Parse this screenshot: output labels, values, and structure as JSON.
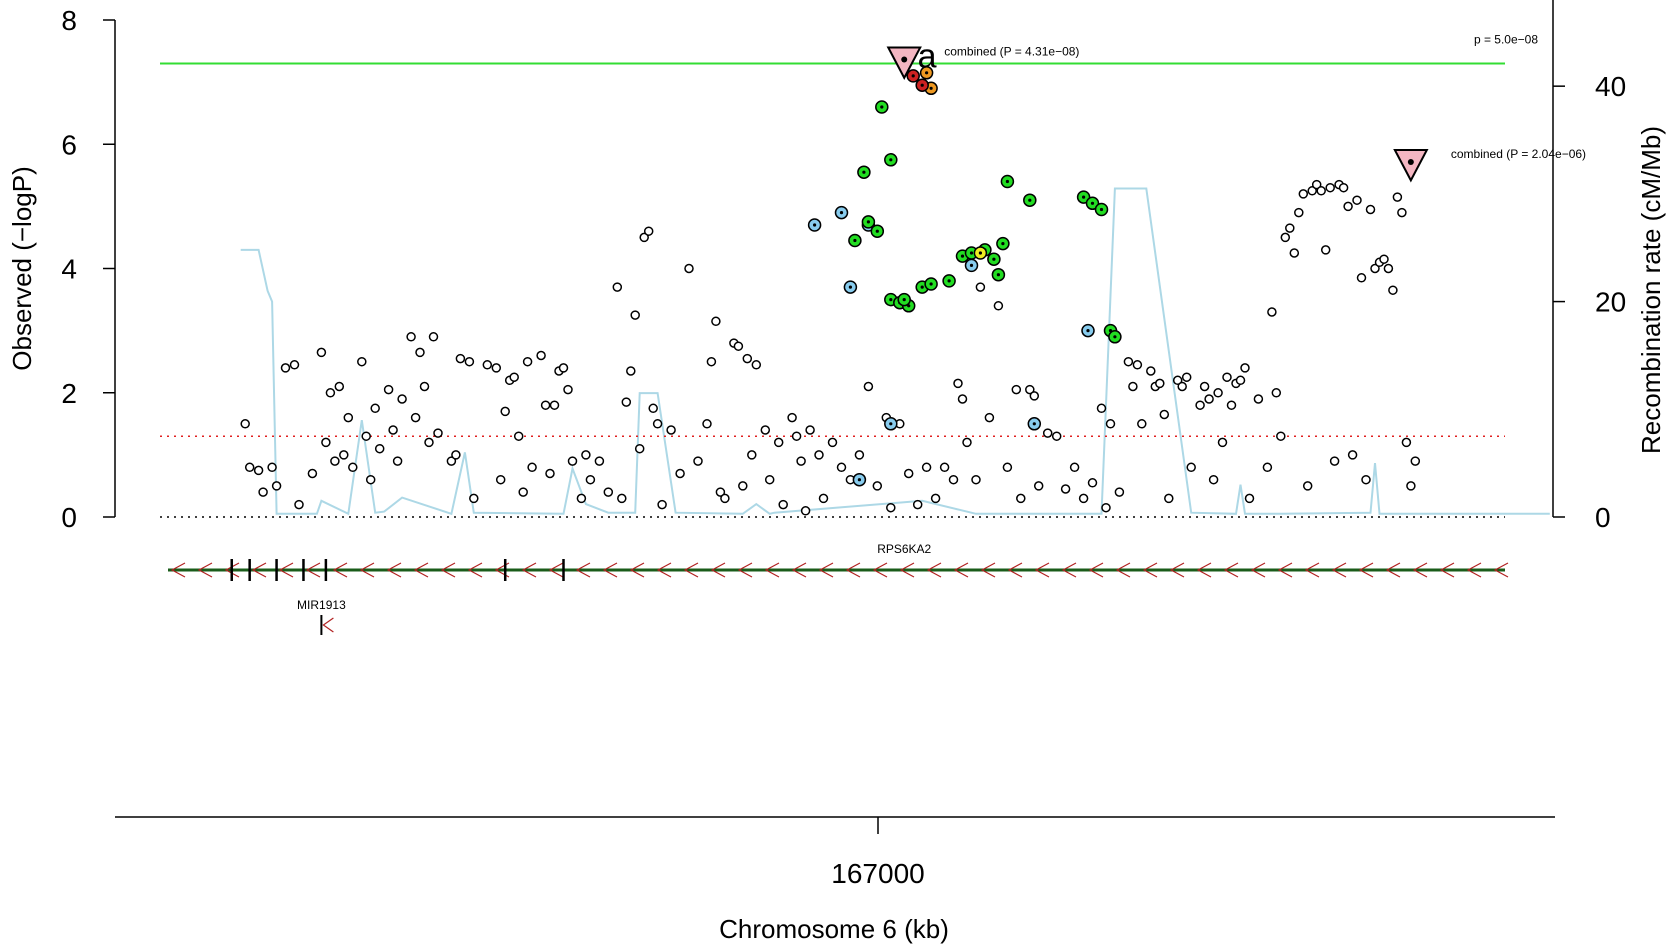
{
  "chart_data": {
    "type": "scatter",
    "subtype": "regional-association-plot",
    "xlabel": "Chromosome 6 (kb)",
    "ylabel": "Observed (−logP)",
    "y2label": "Recombination rate (cM/Mb)",
    "ylim": [
      0,
      8
    ],
    "y2lim": [
      0,
      48
    ],
    "xlim_kb": [
      166830,
      167130
    ],
    "x_ticks": [
      167000
    ],
    "x_tick_labels": [
      "167000"
    ],
    "y_ticks": [
      0,
      2,
      4,
      6,
      8
    ],
    "y2_ticks": [
      0,
      20,
      40
    ],
    "grid": false,
    "legend": "none",
    "reference_lines": [
      {
        "label": "p = 5.0e−08",
        "y": 7.3,
        "color": "#33dd33",
        "style": "solid"
      },
      {
        "label": "",
        "y": 1.3,
        "color": "#e02020",
        "style": "dotted"
      },
      {
        "label": "",
        "y": 0,
        "color": "#000000",
        "style": "dotted"
      }
    ],
    "annotations": [
      {
        "text": "combined (P = 4.31e−08)",
        "x": 166996,
        "y": 7.3,
        "marker": "pink-down-triangle"
      },
      {
        "text": "combined (P = 2.04e−06)",
        "x": 167109,
        "y": 5.65,
        "marker": "pink-down-triangle"
      },
      {
        "text": "a",
        "x": 166999,
        "y": 7.3,
        "color": "#2244ee"
      }
    ],
    "genes": [
      {
        "name": "RPS6KA2",
        "start": 166842,
        "end": 167142,
        "strand": "-",
        "exons": [
          166846,
          166850,
          166856,
          166862,
          166867,
          166907,
          166920
        ]
      },
      {
        "name": "MIR1913",
        "start": 166866,
        "end": 166866,
        "strand": "-",
        "exons": [
          166866
        ]
      }
    ],
    "recombination": {
      "x": [
        166848,
        166852,
        166854,
        166855,
        166856,
        166865,
        166866,
        166872,
        166875,
        166878,
        166880,
        166884,
        166895,
        166898,
        166900,
        166920,
        166922,
        166925,
        166930,
        166936,
        166937,
        166941,
        166945,
        166960,
        166963,
        166966,
        166967,
        167000,
        167012,
        167020,
        167040,
        167043,
        167045,
        167048,
        167050,
        167060,
        167070,
        167071,
        167072,
        167078,
        167080,
        167100,
        167101,
        167102,
        167104,
        167110,
        167140
      ],
      "y": [
        24.8,
        24.8,
        21,
        20,
        0.3,
        0.3,
        1.5,
        0.3,
        9,
        0.4,
        0.5,
        1.8,
        0.3,
        6,
        0.4,
        0.3,
        4.5,
        1.2,
        0.4,
        0.4,
        11.5,
        11.5,
        0.4,
        0.3,
        1.2,
        0.3,
        0.4,
        1.5,
        0.3,
        0.3,
        0.3,
        30.5,
        30.5,
        30.5,
        30.5,
        0.4,
        0.3,
        3,
        0.3,
        0.3,
        0.3,
        0.4,
        5,
        0.3,
        0.3,
        0.3,
        0.3
      ]
    },
    "series": [
      {
        "name": "",
        "color": "#ffffff",
        "points": [
          [
            166849,
            1.5
          ],
          [
            166850,
            0.8
          ],
          [
            166852,
            0.75
          ],
          [
            166853,
            0.4
          ],
          [
            166855,
            0.8
          ],
          [
            166856,
            0.5
          ],
          [
            166858,
            2.4
          ],
          [
            166860,
            2.45
          ],
          [
            166861,
            0.2
          ],
          [
            166864,
            0.7
          ],
          [
            166866,
            2.65
          ],
          [
            166867,
            1.2
          ],
          [
            166868,
            2.0
          ],
          [
            166869,
            0.9
          ],
          [
            166870,
            2.1
          ],
          [
            166871,
            1.0
          ],
          [
            166872,
            1.6
          ],
          [
            166873,
            0.8
          ],
          [
            166875,
            2.5
          ],
          [
            166876,
            1.3
          ],
          [
            166877,
            0.6
          ],
          [
            166878,
            1.75
          ],
          [
            166879,
            1.1
          ],
          [
            166881,
            2.05
          ],
          [
            166882,
            1.4
          ],
          [
            166883,
            0.9
          ],
          [
            166884,
            1.9
          ],
          [
            166886,
            2.9
          ],
          [
            166887,
            1.6
          ],
          [
            166888,
            2.65
          ],
          [
            166889,
            2.1
          ],
          [
            166890,
            1.2
          ],
          [
            166891,
            2.9
          ],
          [
            166892,
            1.35
          ],
          [
            166895,
            0.9
          ],
          [
            166896,
            1.0
          ],
          [
            166897,
            2.55
          ],
          [
            166899,
            2.5
          ],
          [
            166900,
            0.3
          ],
          [
            166903,
            2.45
          ],
          [
            166905,
            2.4
          ],
          [
            166906,
            0.6
          ],
          [
            166907,
            1.7
          ],
          [
            166908,
            2.2
          ],
          [
            166909,
            2.25
          ],
          [
            166910,
            1.3
          ],
          [
            166911,
            0.4
          ],
          [
            166912,
            2.5
          ],
          [
            166913,
            0.8
          ],
          [
            166915,
            2.6
          ],
          [
            166916,
            1.8
          ],
          [
            166917,
            0.7
          ],
          [
            166918,
            1.8
          ],
          [
            166919,
            2.35
          ],
          [
            166920,
            2.4
          ],
          [
            166921,
            2.05
          ],
          [
            166922,
            0.9
          ],
          [
            166924,
            0.3
          ],
          [
            166925,
            1.0
          ],
          [
            166926,
            0.6
          ],
          [
            166928,
            0.9
          ],
          [
            166930,
            0.4
          ],
          [
            166932,
            3.7
          ],
          [
            166933,
            0.3
          ],
          [
            166934,
            1.85
          ],
          [
            166935,
            2.35
          ],
          [
            166936,
            3.25
          ],
          [
            166937,
            1.1
          ],
          [
            166938,
            4.5
          ],
          [
            166939,
            4.6
          ],
          [
            166940,
            1.75
          ],
          [
            166941,
            1.5
          ],
          [
            166942,
            0.2
          ],
          [
            166944,
            1.4
          ],
          [
            166946,
            0.7
          ],
          [
            166948,
            4.0
          ],
          [
            166950,
            0.9
          ],
          [
            166952,
            1.5
          ],
          [
            166953,
            2.5
          ],
          [
            166954,
            3.15
          ],
          [
            166955,
            0.4
          ],
          [
            166956,
            0.3
          ],
          [
            166958,
            2.8
          ],
          [
            166959,
            2.75
          ],
          [
            166960,
            0.5
          ],
          [
            166961,
            2.55
          ],
          [
            166962,
            1.0
          ],
          [
            166963,
            2.45
          ],
          [
            166965,
            1.4
          ],
          [
            166966,
            0.6
          ],
          [
            166968,
            1.2
          ],
          [
            166969,
            0.2
          ],
          [
            166971,
            1.6
          ],
          [
            166972,
            1.3
          ],
          [
            166973,
            0.9
          ],
          [
            166974,
            0.1
          ],
          [
            166975,
            1.4
          ],
          [
            166977,
            1.0
          ],
          [
            166978,
            0.3
          ],
          [
            166980,
            1.2
          ],
          [
            166982,
            0.8
          ],
          [
            166984,
            0.6
          ],
          [
            166986,
            1.0
          ],
          [
            166988,
            2.1
          ],
          [
            166990,
            0.5
          ],
          [
            166992,
            1.6
          ],
          [
            166993,
            0.15
          ],
          [
            166995,
            1.5
          ],
          [
            166997,
            0.7
          ],
          [
            166999,
            0.2
          ],
          [
            167001,
            0.8
          ],
          [
            167003,
            0.3
          ],
          [
            167005,
            0.8
          ],
          [
            167007,
            0.6
          ],
          [
            167008,
            2.15
          ],
          [
            167009,
            1.9
          ],
          [
            167010,
            1.2
          ],
          [
            167012,
            0.6
          ],
          [
            167013,
            3.7
          ],
          [
            167015,
            1.6
          ],
          [
            167017,
            3.4
          ],
          [
            167019,
            0.8
          ],
          [
            167021,
            2.05
          ],
          [
            167022,
            0.3
          ],
          [
            167024,
            2.05
          ],
          [
            167025,
            1.95
          ],
          [
            167026,
            0.5
          ],
          [
            167028,
            1.35
          ],
          [
            167030,
            1.3
          ],
          [
            167032,
            0.45
          ],
          [
            167034,
            0.8
          ],
          [
            167036,
            0.3
          ],
          [
            167038,
            0.55
          ],
          [
            167040,
            1.75
          ],
          [
            167041,
            0.15
          ],
          [
            167042,
            1.5
          ],
          [
            167044,
            0.4
          ],
          [
            167046,
            2.5
          ],
          [
            167047,
            2.1
          ],
          [
            167048,
            2.45
          ],
          [
            167049,
            1.5
          ],
          [
            167051,
            2.35
          ],
          [
            167052,
            2.1
          ],
          [
            167053,
            2.15
          ],
          [
            167054,
            1.65
          ],
          [
            167055,
            0.3
          ],
          [
            167057,
            2.2
          ],
          [
            167058,
            2.1
          ],
          [
            167059,
            2.25
          ],
          [
            167060,
            0.8
          ],
          [
            167062,
            1.8
          ],
          [
            167063,
            2.1
          ],
          [
            167064,
            1.9
          ],
          [
            167065,
            0.6
          ],
          [
            167066,
            2.0
          ],
          [
            167067,
            1.2
          ],
          [
            167068,
            2.25
          ],
          [
            167069,
            1.8
          ],
          [
            167070,
            2.15
          ],
          [
            167071,
            2.2
          ],
          [
            167072,
            2.4
          ],
          [
            167073,
            0.3
          ],
          [
            167075,
            1.9
          ],
          [
            167077,
            0.8
          ],
          [
            167078,
            3.3
          ],
          [
            167079,
            2.0
          ],
          [
            167080,
            1.3
          ],
          [
            167081,
            4.5
          ],
          [
            167082,
            4.65
          ],
          [
            167083,
            4.25
          ],
          [
            167084,
            4.9
          ],
          [
            167085,
            5.2
          ],
          [
            167086,
            0.5
          ],
          [
            167087,
            5.25
          ],
          [
            167088,
            5.35
          ],
          [
            167089,
            5.25
          ],
          [
            167090,
            4.3
          ],
          [
            167091,
            5.3
          ],
          [
            167092,
            0.9
          ],
          [
            167093,
            5.35
          ],
          [
            167094,
            5.3
          ],
          [
            167095,
            5.0
          ],
          [
            167096,
            1.0
          ],
          [
            167097,
            5.1
          ],
          [
            167098,
            3.85
          ],
          [
            167099,
            0.6
          ],
          [
            167100,
            4.95
          ],
          [
            167101,
            4.0
          ],
          [
            167102,
            4.1
          ],
          [
            167103,
            4.15
          ],
          [
            167104,
            4.0
          ],
          [
            167105,
            3.65
          ],
          [
            167106,
            5.15
          ],
          [
            167107,
            4.9
          ],
          [
            167108,
            1.2
          ],
          [
            167109,
            0.5
          ],
          [
            167110,
            0.9
          ]
        ]
      },
      {
        "name": "",
        "color": "#88ccee",
        "points": [
          [
            166976,
            4.7
          ],
          [
            166982,
            4.9
          ],
          [
            166984,
            3.7
          ],
          [
            166988,
            4.7
          ],
          [
            166993,
            1.5
          ],
          [
            166986,
            0.6
          ],
          [
            167011,
            4.05
          ],
          [
            167025,
            1.5
          ],
          [
            167037,
            3.0
          ]
        ]
      },
      {
        "name": "",
        "color": "#22dd22",
        "points": [
          [
            166991,
            6.6
          ],
          [
            166993,
            5.75
          ],
          [
            166987,
            5.55
          ],
          [
            166988,
            4.75
          ],
          [
            166990,
            4.6
          ],
          [
            166985,
            4.45
          ],
          [
            166993,
            3.5
          ],
          [
            166995,
            3.45
          ],
          [
            166997,
            3.4
          ],
          [
            167000,
            3.7
          ],
          [
            167002,
            3.75
          ],
          [
            167006,
            3.8
          ],
          [
            167009,
            4.2
          ],
          [
            167011,
            4.25
          ],
          [
            167014,
            4.3
          ],
          [
            167016,
            4.15
          ],
          [
            167017,
            3.9
          ],
          [
            167018,
            4.4
          ],
          [
            167019,
            5.4
          ],
          [
            167024,
            5.1
          ],
          [
            167036,
            5.15
          ],
          [
            167038,
            5.05
          ],
          [
            167040,
            4.95
          ],
          [
            167042,
            3.0
          ],
          [
            167043,
            2.9
          ],
          [
            166996,
            3.5
          ]
        ]
      },
      {
        "name": "",
        "color": "#eeee22",
        "points": [
          [
            167013,
            4.25
          ]
        ]
      },
      {
        "name": "",
        "color": "#ee9922",
        "points": [
          [
            167001,
            7.15
          ],
          [
            167002,
            6.9
          ]
        ]
      },
      {
        "name": "",
        "color": "#cc2222",
        "points": [
          [
            166998,
            7.1
          ],
          [
            167000,
            6.95
          ]
        ]
      }
    ]
  }
}
